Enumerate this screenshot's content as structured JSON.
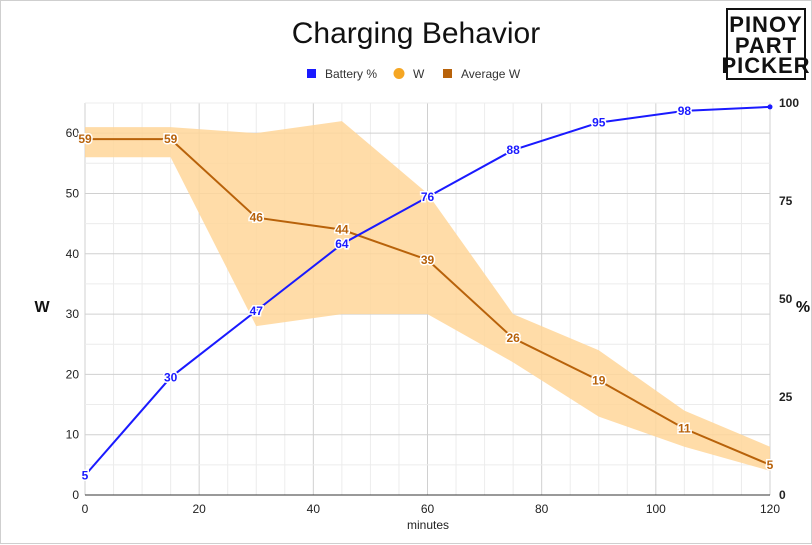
{
  "chart_data": {
    "type": "line",
    "title": "Charging Behavior",
    "xlabel": "minutes",
    "ylabel_left": "W",
    "ylabel_right": "%",
    "xlim": [
      0,
      120
    ],
    "ylim_left": [
      0,
      65
    ],
    "ylim_right": [
      0,
      100
    ],
    "x_ticks": [
      0,
      20,
      40,
      60,
      80,
      100,
      120
    ],
    "y_left_ticks": [
      0,
      10,
      20,
      30,
      40,
      50,
      60
    ],
    "y_right_ticks": [
      0,
      25,
      50,
      75,
      100
    ],
    "grid": true,
    "legend_position": "top",
    "logo_lines": [
      "PINOY",
      "PART",
      "PICKER"
    ],
    "series": [
      {
        "name": "Battery %",
        "axis": "right",
        "color": "#1a1aff",
        "x": [
          0,
          15,
          30,
          45,
          60,
          75,
          90,
          105,
          120
        ],
        "values": [
          5,
          30,
          47,
          64,
          76,
          88,
          95,
          98,
          99
        ],
        "labels": [
          "5",
          "30",
          "47",
          "64",
          "76",
          "88",
          "95",
          "98",
          ""
        ]
      },
      {
        "name": "W",
        "axis": "left",
        "type": "range",
        "color": "#ffd699",
        "legend_color": "#f5a623",
        "x": [
          0,
          15,
          30,
          45,
          60,
          75,
          90,
          105,
          120
        ],
        "upper": [
          61,
          61,
          60,
          62,
          50,
          30,
          24,
          14,
          8
        ],
        "lower": [
          56,
          56,
          28,
          30,
          30,
          22,
          13,
          8,
          4
        ]
      },
      {
        "name": "Average W",
        "axis": "left",
        "color": "#b8620a",
        "x": [
          0,
          15,
          30,
          45,
          60,
          75,
          90,
          105,
          120
        ],
        "values": [
          59,
          59,
          46,
          44,
          39,
          26,
          19,
          11,
          5
        ],
        "labels": [
          "59",
          "59",
          "46",
          "44",
          "39",
          "26",
          "19",
          "11",
          "5"
        ]
      }
    ]
  }
}
